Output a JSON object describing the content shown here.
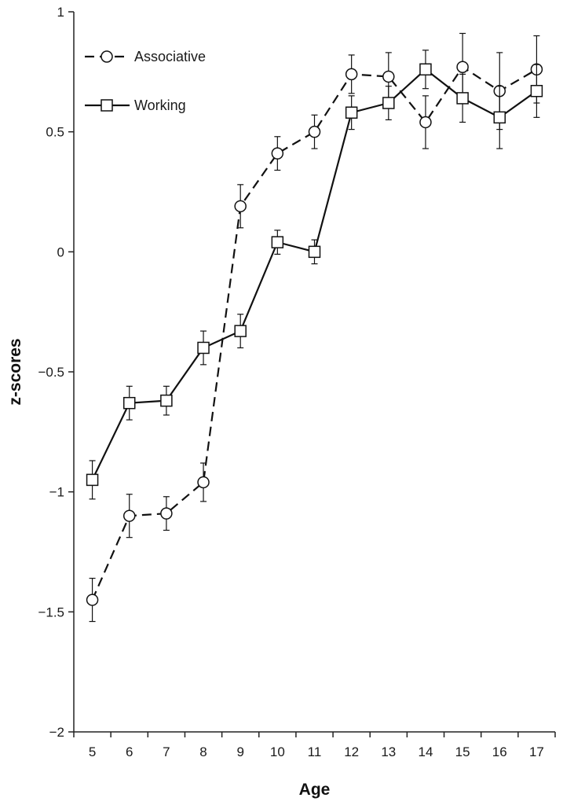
{
  "chart_data": {
    "type": "line",
    "title": "",
    "xlabel": "Age",
    "ylabel": "z-scores",
    "categories": [
      "5",
      "6",
      "7",
      "8",
      "9",
      "10",
      "11",
      "12",
      "13",
      "14",
      "15",
      "16",
      "17"
    ],
    "ylim": [
      -2,
      1
    ],
    "yticks": [
      1,
      0.5,
      0,
      -0.5,
      -1,
      -1.5,
      -2
    ],
    "ytick_labels": [
      "1",
      "0.5",
      "0",
      "−0.5",
      "−1",
      "−1.5",
      "−2"
    ],
    "grid": false,
    "legend_position": "top-left",
    "series": [
      {
        "name": "Associative",
        "marker": "circle",
        "line_style": "dashed",
        "color": "#111111",
        "values": [
          -1.45,
          -1.1,
          -1.09,
          -0.96,
          0.19,
          0.41,
          0.5,
          0.74,
          0.73,
          0.54,
          0.77,
          0.67,
          0.76
        ],
        "errors": [
          0.09,
          0.09,
          0.07,
          0.08,
          0.09,
          0.07,
          0.07,
          0.08,
          0.1,
          0.11,
          0.14,
          0.16,
          0.14
        ]
      },
      {
        "name": "Working",
        "marker": "square",
        "line_style": "solid",
        "color": "#111111",
        "values": [
          -0.95,
          -0.63,
          -0.62,
          -0.4,
          -0.33,
          0.04,
          0.0,
          0.58,
          0.62,
          0.76,
          0.64,
          0.56,
          0.67
        ],
        "errors": [
          0.08,
          0.07,
          0.06,
          0.07,
          0.07,
          0.05,
          0.05,
          0.07,
          0.07,
          0.08,
          0.1,
          0.13,
          0.11
        ]
      }
    ]
  }
}
